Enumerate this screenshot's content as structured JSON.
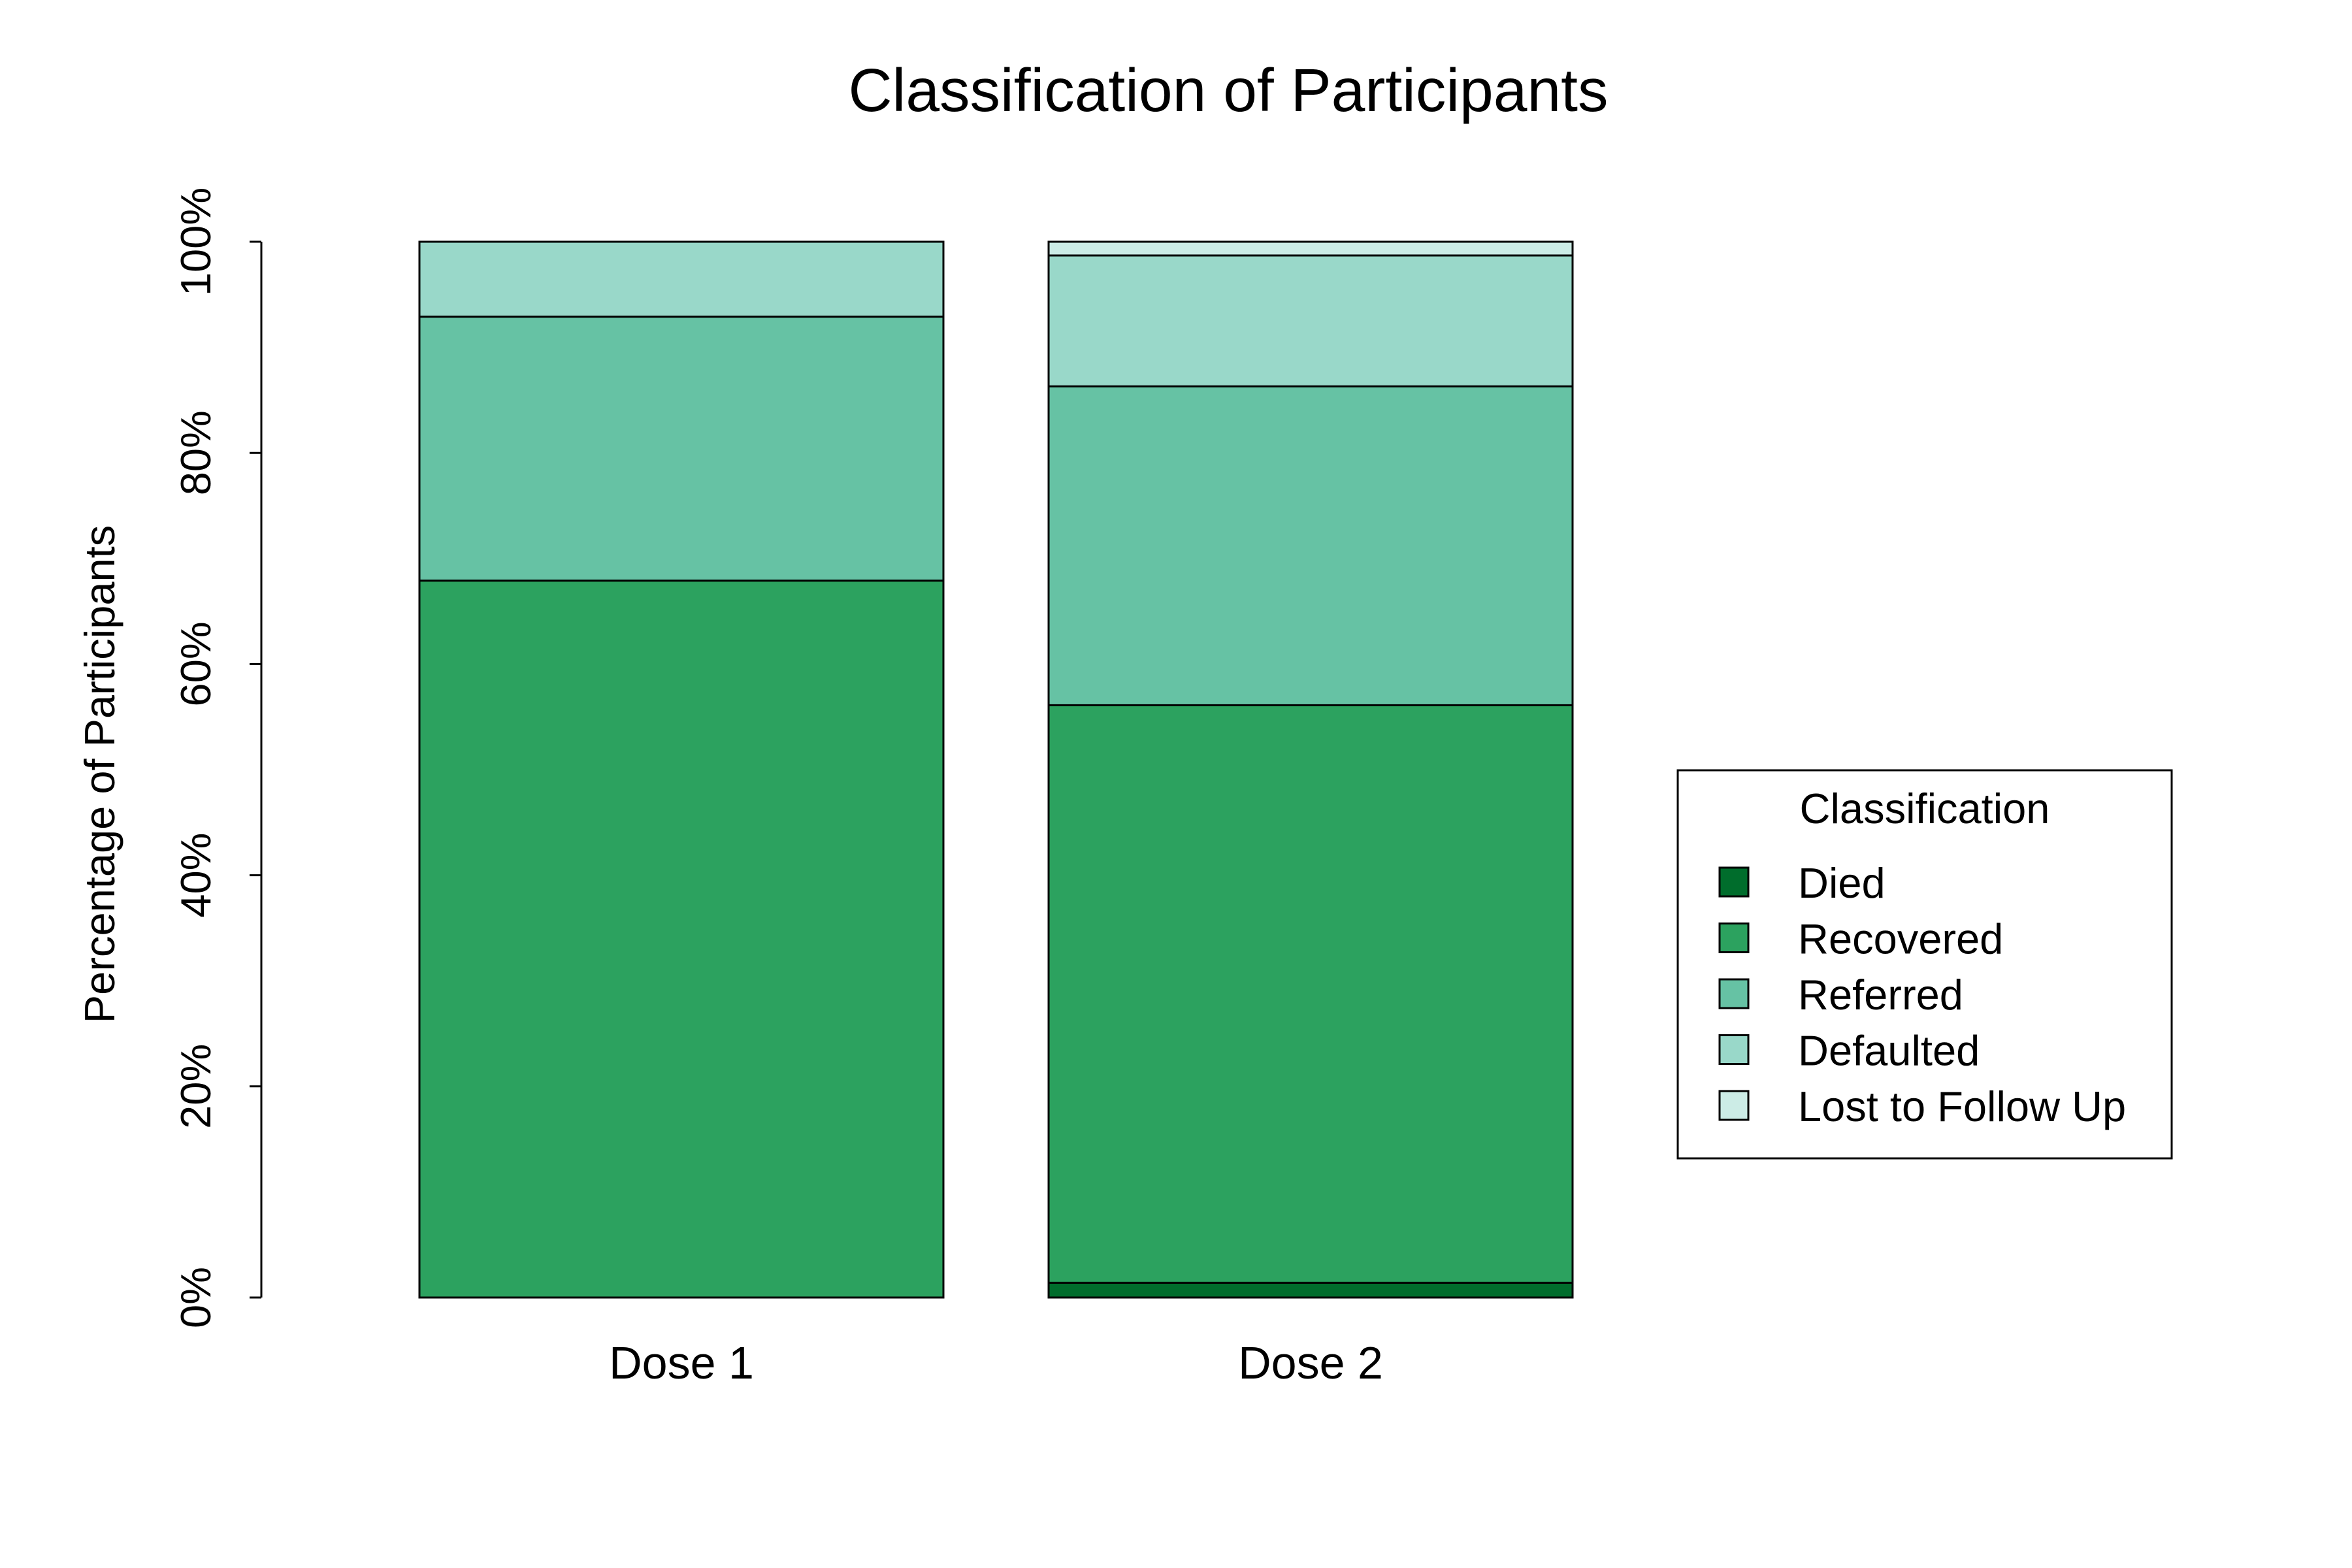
{
  "chart_data": {
    "type": "bar",
    "stacked": true,
    "title": "Classification of Participants",
    "xlabel": "",
    "ylabel": "Percentage of Participants",
    "ylim": [
      0,
      100
    ],
    "yticks": [
      0,
      20,
      40,
      60,
      80,
      100
    ],
    "ytick_labels": [
      "0%",
      "20%",
      "40%",
      "60%",
      "80%",
      "100%"
    ],
    "categories": [
      "Dose 1",
      "Dose 2"
    ],
    "series": [
      {
        "name": "Died",
        "color": "#006d2c",
        "values": [
          0,
          1.4
        ]
      },
      {
        "name": "Recovered",
        "color": "#2ca25f",
        "values": [
          67.9,
          54.7
        ]
      },
      {
        "name": "Referred",
        "color": "#66c2a4",
        "values": [
          25.0,
          30.2
        ]
      },
      {
        "name": "Defaulted",
        "color": "#99d8c9",
        "values": [
          7.1,
          12.4
        ]
      },
      {
        "name": "Lost to Follow Up",
        "color": "#ccece6",
        "values": [
          0,
          1.3
        ]
      }
    ],
    "legend": {
      "title": "Classification",
      "position": "right"
    },
    "grid": false
  }
}
